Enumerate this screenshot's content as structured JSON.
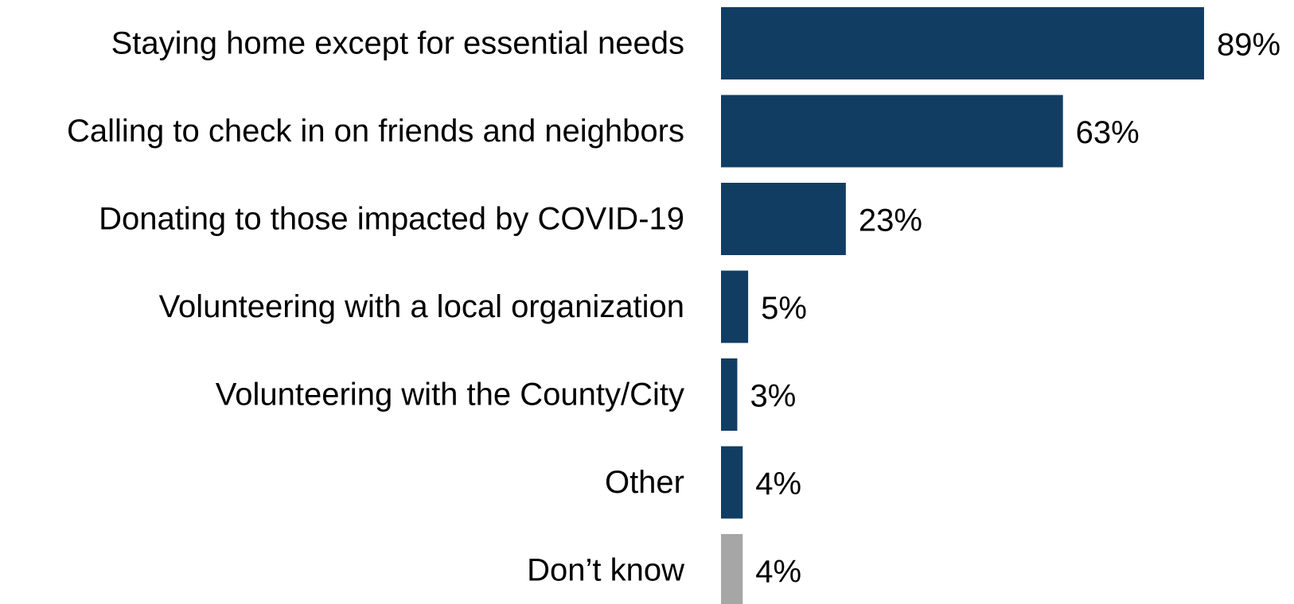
{
  "chart_data": {
    "type": "bar",
    "orientation": "horizontal",
    "categories": [
      "Staying home except for essential needs",
      "Calling to check in on friends and neighbors",
      "Donating to those impacted by COVID-19",
      "Volunteering with a local organization",
      "Volunteering with the County/City",
      "Other",
      "Don’t know"
    ],
    "values": [
      89,
      63,
      23,
      5,
      3,
      4,
      4
    ],
    "value_labels": [
      "89%",
      "63%",
      "23%",
      "5%",
      "3%",
      "4%",
      "4%"
    ],
    "bar_colors": [
      "#123d63",
      "#123d63",
      "#123d63",
      "#123d63",
      "#123d63",
      "#123d63",
      "#a6a6a6"
    ],
    "xlim": [
      0,
      100
    ],
    "title": "",
    "xlabel": "",
    "ylabel": "",
    "grid": false,
    "legend": "none"
  }
}
